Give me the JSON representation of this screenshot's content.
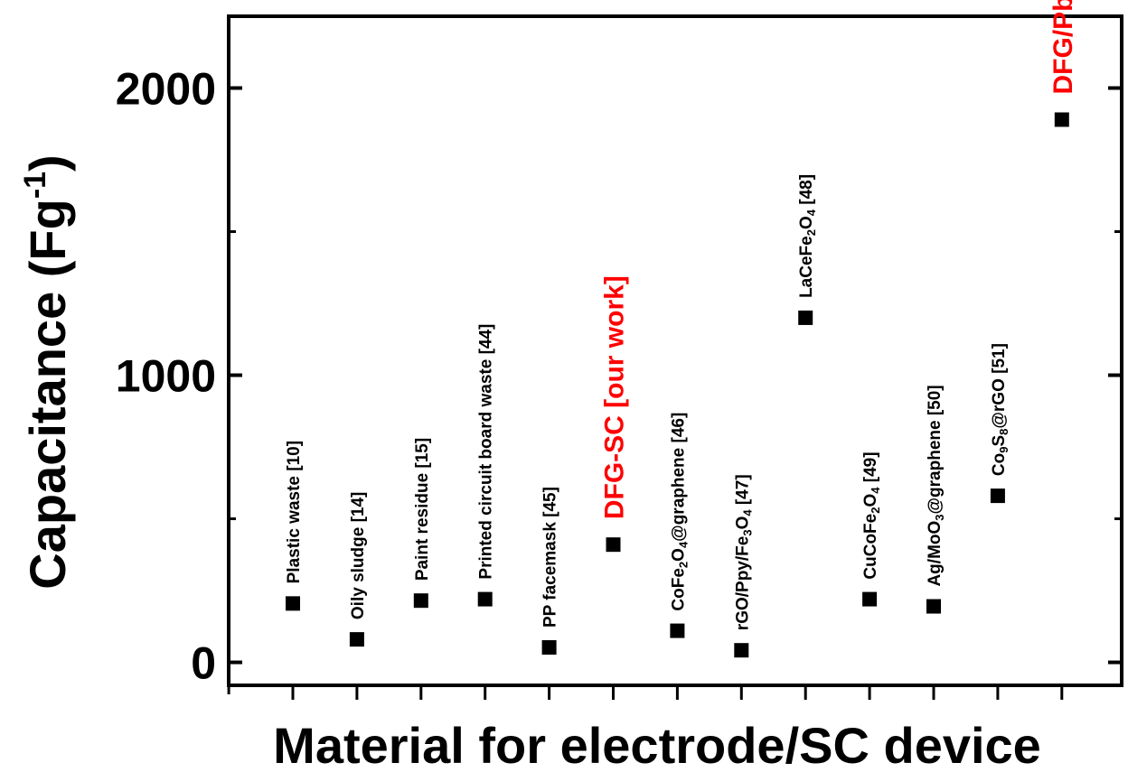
{
  "chart_data": {
    "type": "scatter",
    "title": "",
    "xlabel": "Material for electrode/SC device",
    "ylabel_main": "Capacitance (Fg",
    "ylabel_sup": "-1",
    "ylabel_close": ")",
    "ylim": [
      -80,
      2250
    ],
    "yticks": [
      0,
      1000,
      2000
    ],
    "ytick_labels": [
      "0",
      "1000",
      "2000"
    ],
    "grid": false,
    "legend": "none",
    "marker_color": "#000000",
    "highlight_color": "#ff0000",
    "points": [
      {
        "x": 1,
        "y": 205,
        "label": [
          {
            "t": "Plastic waste [10]"
          }
        ],
        "highlight": false
      },
      {
        "x": 2,
        "y": 80,
        "label": [
          {
            "t": "Oily sludge [14]"
          }
        ],
        "highlight": false
      },
      {
        "x": 3,
        "y": 215,
        "label": [
          {
            "t": "Paint residue [15]"
          }
        ],
        "highlight": false
      },
      {
        "x": 4,
        "y": 220,
        "label": [
          {
            "t": "Printed circuit board waste [44]"
          }
        ],
        "highlight": false
      },
      {
        "x": 5,
        "y": 52,
        "label": [
          {
            "t": "PP facemask [45]"
          }
        ],
        "highlight": false
      },
      {
        "x": 6,
        "y": 410,
        "label": [
          {
            "t": "DFG-SC [our work]"
          }
        ],
        "highlight": true
      },
      {
        "x": 7,
        "y": 110,
        "label": [
          {
            "t": "CoFe"
          },
          {
            "t": "2",
            "sub": true
          },
          {
            "t": "O"
          },
          {
            "t": "4",
            "sub": true
          },
          {
            "t": "@graphene [46]"
          }
        ],
        "highlight": false
      },
      {
        "x": 8,
        "y": 42,
        "label": [
          {
            "t": "rGO/Ppy/Fe"
          },
          {
            "t": "3",
            "sub": true
          },
          {
            "t": "O"
          },
          {
            "t": "4",
            "sub": true
          },
          {
            "t": " [47]"
          }
        ],
        "highlight": false
      },
      {
        "x": 9,
        "y": 1200,
        "label": [
          {
            "t": "LaCeFe"
          },
          {
            "t": "2",
            "sub": true
          },
          {
            "t": "O"
          },
          {
            "t": "4",
            "sub": true
          },
          {
            "t": " [48]"
          }
        ],
        "highlight": false
      },
      {
        "x": 10,
        "y": 220,
        "label": [
          {
            "t": "CuCoFe"
          },
          {
            "t": "2",
            "sub": true
          },
          {
            "t": "O"
          },
          {
            "t": "4",
            "sub": true
          },
          {
            "t": " [49]"
          }
        ],
        "highlight": false
      },
      {
        "x": 11,
        "y": 195,
        "label": [
          {
            "t": "Ag/MoO"
          },
          {
            "t": "3",
            "sub": true
          },
          {
            "t": "@graphene [50]"
          }
        ],
        "highlight": false
      },
      {
        "x": 12,
        "y": 580,
        "label": [
          {
            "t": "Co"
          },
          {
            "t": "9",
            "sub": true
          },
          {
            "t": "S"
          },
          {
            "t": "8",
            "sub": true
          },
          {
            "t": "@rGO [51]"
          }
        ],
        "highlight": false
      },
      {
        "x": 13,
        "y": 1890,
        "label": [
          {
            "t": "DFG/PbFeCr-SC [our work]"
          }
        ],
        "highlight": true
      }
    ]
  }
}
